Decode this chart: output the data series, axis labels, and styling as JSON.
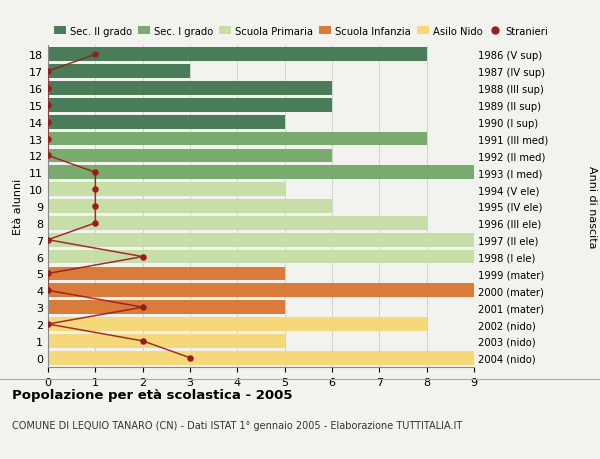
{
  "ages": [
    18,
    17,
    16,
    15,
    14,
    13,
    12,
    11,
    10,
    9,
    8,
    7,
    6,
    5,
    4,
    3,
    2,
    1,
    0
  ],
  "years": [
    "1986 (V sup)",
    "1987 (IV sup)",
    "1988 (III sup)",
    "1989 (II sup)",
    "1990 (I sup)",
    "1991 (III med)",
    "1992 (II med)",
    "1993 (I med)",
    "1994 (V ele)",
    "1995 (IV ele)",
    "1996 (III ele)",
    "1997 (II ele)",
    "1998 (I ele)",
    "1999 (mater)",
    "2000 (mater)",
    "2001 (mater)",
    "2002 (nido)",
    "2003 (nido)",
    "2004 (nido)"
  ],
  "bar_values": [
    8,
    3,
    6,
    6,
    5,
    8,
    6,
    9,
    5,
    6,
    8,
    9,
    9,
    5,
    9,
    5,
    8,
    5,
    9
  ],
  "bar_colors": [
    "#4a7c59",
    "#4a7c59",
    "#4a7c59",
    "#4a7c59",
    "#4a7c59",
    "#7aab6e",
    "#7aab6e",
    "#7aab6e",
    "#c8dea8",
    "#c8dea8",
    "#c8dea8",
    "#c8dea8",
    "#c8dea8",
    "#d97b3a",
    "#d97b3a",
    "#d97b3a",
    "#f5d87a",
    "#f5d87a",
    "#f5d87a"
  ],
  "stranieri_ages": [
    18,
    17,
    16,
    15,
    14,
    13,
    12,
    11,
    10,
    9,
    8,
    7,
    6,
    5,
    4,
    3,
    2,
    1,
    0
  ],
  "stranieri_values": [
    1,
    0,
    0,
    0,
    0,
    0,
    0,
    1,
    1,
    1,
    1,
    0,
    2,
    0,
    0,
    2,
    0,
    2,
    3
  ],
  "legend_labels": [
    "Sec. II grado",
    "Sec. I grado",
    "Scuola Primaria",
    "Scuola Infanzia",
    "Asilo Nido",
    "Stranieri"
  ],
  "legend_colors": [
    "#4a7c59",
    "#7aab6e",
    "#c8dea8",
    "#d97b3a",
    "#f5d87a",
    "#9b1c1c"
  ],
  "title": "Popolazione per età scolastica - 2005",
  "subtitle": "COMUNE DI LEQUIO TANARO (CN) - Dati ISTAT 1° gennaio 2005 - Elaborazione TUTTITALIA.IT",
  "ylabel_left": "Età alunni",
  "ylabel_right": "Anni di nascita",
  "xlim": [
    0,
    9
  ],
  "ylim": [
    -0.55,
    18.55
  ],
  "background_color": "#f2f2ee",
  "grid_color": "#cccccc",
  "bar_height": 0.82
}
